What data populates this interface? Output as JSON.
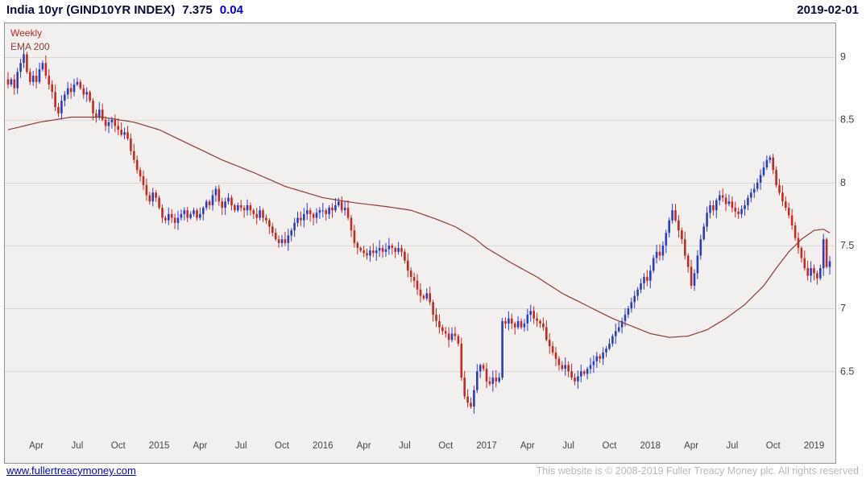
{
  "header": {
    "title": "India 10yr (GIND10YR INDEX)",
    "last_price": "7.375",
    "change": "0.04",
    "date": "2019-02-01"
  },
  "legend": {
    "timeframe": "Weekly",
    "overlay": "EMA 200"
  },
  "footer": {
    "link": "www.fullertreacymoney.com",
    "copyright": "This website is © 2008-2019 Fuller Treacy Money plc. All rights reserved"
  },
  "colors": {
    "title": "#0a0a3c",
    "change": "#0000dd",
    "link": "#0000cc",
    "copyright": "#b9b9b9",
    "legend_timeframe": "#b22822",
    "legend_ema": "#8c3a38",
    "up": "#2b3cc0",
    "down": "#c22a22",
    "ema": "#8c3a38",
    "grid": "#d8d8d6",
    "plot_bg": "#f1f0ee",
    "border": "#8f8f8f",
    "axis_text": "#444444"
  },
  "chart_data": {
    "type": "candlestick",
    "title": "India 10yr (GIND10YR INDEX)",
    "subtitle": "Weekly",
    "legend_entries": [
      "Weekly",
      "EMA 200"
    ],
    "last": 7.375,
    "change": 0.04,
    "as_of": "2019-02-01",
    "y_ticks": [
      9,
      8.5,
      8,
      7.5,
      7,
      6.5
    ],
    "y_tick_labels": [
      "9",
      "8.5",
      "8",
      "7.5",
      "7",
      "6.5"
    ],
    "y_range": [
      5.99,
      9.24
    ],
    "x_labels": [
      {
        "label": "Apr",
        "week": 9
      },
      {
        "label": "Jul",
        "week": 22
      },
      {
        "label": "Oct",
        "week": 35
      },
      {
        "label": "2015",
        "week": 48
      },
      {
        "label": "Apr",
        "week": 61
      },
      {
        "label": "Jul",
        "week": 74
      },
      {
        "label": "Oct",
        "week": 87
      },
      {
        "label": "2016",
        "week": 100
      },
      {
        "label": "Apr",
        "week": 113
      },
      {
        "label": "Jul",
        "week": 126
      },
      {
        "label": "Oct",
        "week": 139
      },
      {
        "label": "2017",
        "week": 152
      },
      {
        "label": "Apr",
        "week": 165
      },
      {
        "label": "Jul",
        "week": 178
      },
      {
        "label": "Oct",
        "week": 191
      },
      {
        "label": "2018",
        "week": 204
      },
      {
        "label": "Apr",
        "week": 217
      },
      {
        "label": "Jul",
        "week": 230
      },
      {
        "label": "Oct",
        "week": 243
      },
      {
        "label": "2019",
        "week": 256
      }
    ],
    "weekly_closes": [
      8.78,
      8.82,
      8.75,
      8.88,
      8.95,
      9.02,
      8.88,
      8.8,
      8.85,
      8.8,
      8.9,
      8.95,
      8.85,
      8.78,
      8.72,
      8.6,
      8.55,
      8.65,
      8.7,
      8.75,
      8.72,
      8.78,
      8.8,
      8.75,
      8.7,
      8.72,
      8.65,
      8.55,
      8.52,
      8.58,
      8.5,
      8.45,
      8.48,
      8.5,
      8.45,
      8.42,
      8.38,
      8.4,
      8.35,
      8.25,
      8.18,
      8.1,
      8.05,
      7.98,
      7.9,
      7.85,
      7.92,
      7.88,
      7.8,
      7.72,
      7.7,
      7.75,
      7.72,
      7.68,
      7.72,
      7.75,
      7.78,
      7.72,
      7.75,
      7.78,
      7.72,
      7.75,
      7.8,
      7.85,
      7.82,
      7.9,
      7.95,
      7.85,
      7.8,
      7.85,
      7.88,
      7.82,
      7.78,
      7.82,
      7.8,
      7.78,
      7.82,
      7.78,
      7.75,
      7.72,
      7.78,
      7.72,
      7.7,
      7.65,
      7.6,
      7.55,
      7.52,
      7.55,
      7.52,
      7.58,
      7.62,
      7.68,
      7.72,
      7.7,
      7.75,
      7.78,
      7.75,
      7.72,
      7.76,
      7.78,
      7.78,
      7.75,
      7.8,
      7.78,
      7.82,
      7.85,
      7.78,
      7.8,
      7.72,
      7.62,
      7.52,
      7.48,
      7.46,
      7.44,
      7.42,
      7.46,
      7.44,
      7.46,
      7.48,
      7.45,
      7.47,
      7.5,
      7.48,
      7.45,
      7.48,
      7.45,
      7.38,
      7.3,
      7.25,
      7.22,
      7.15,
      7.1,
      7.08,
      7.12,
      7.05,
      6.95,
      6.9,
      6.85,
      6.82,
      6.8,
      6.75,
      6.8,
      6.78,
      6.72,
      6.45,
      6.3,
      6.25,
      6.22,
      6.35,
      6.5,
      6.55,
      6.52,
      6.42,
      6.4,
      6.45,
      6.42,
      6.45,
      6.9,
      6.88,
      6.92,
      6.88,
      6.85,
      6.9,
      6.85,
      6.88,
      6.95,
      6.98,
      6.92,
      6.9,
      6.88,
      6.85,
      6.75,
      6.7,
      6.65,
      6.6,
      6.55,
      6.52,
      6.55,
      6.5,
      6.45,
      6.42,
      6.46,
      6.5,
      6.48,
      6.52,
      6.55,
      6.58,
      6.62,
      6.6,
      6.65,
      6.68,
      6.72,
      6.78,
      6.82,
      6.85,
      6.9,
      6.95,
      7.0,
      7.05,
      7.1,
      7.15,
      7.2,
      7.25,
      7.22,
      7.3,
      7.4,
      7.45,
      7.42,
      7.5,
      7.6,
      7.7,
      7.78,
      7.7,
      7.62,
      7.55,
      7.42,
      7.33,
      7.18,
      7.28,
      7.42,
      7.55,
      7.65,
      7.76,
      7.82,
      7.78,
      7.86,
      7.9,
      7.88,
      7.83,
      7.85,
      7.8,
      7.77,
      7.75,
      7.79,
      7.82,
      7.88,
      7.92,
      7.95,
      8.0,
      8.06,
      8.12,
      8.18,
      8.2,
      8.1,
      7.98,
      7.92,
      7.85,
      7.8,
      7.74,
      7.66,
      7.56,
      7.48,
      7.4,
      7.32,
      7.26,
      7.32,
      7.28,
      7.24,
      7.32,
      7.55,
      7.33,
      7.375
    ],
    "ema_200": [
      [
        0,
        8.42
      ],
      [
        10,
        8.48
      ],
      [
        20,
        8.52
      ],
      [
        30,
        8.52
      ],
      [
        40,
        8.48
      ],
      [
        48,
        8.42
      ],
      [
        58,
        8.3
      ],
      [
        68,
        8.18
      ],
      [
        78,
        8.08
      ],
      [
        88,
        7.97
      ],
      [
        100,
        7.88
      ],
      [
        110,
        7.84
      ],
      [
        120,
        7.81
      ],
      [
        128,
        7.78
      ],
      [
        136,
        7.71
      ],
      [
        142,
        7.65
      ],
      [
        148,
        7.56
      ],
      [
        152,
        7.48
      ],
      [
        160,
        7.36
      ],
      [
        168,
        7.25
      ],
      [
        176,
        7.12
      ],
      [
        184,
        7.02
      ],
      [
        192,
        6.92
      ],
      [
        200,
        6.84
      ],
      [
        204,
        6.8
      ],
      [
        210,
        6.77
      ],
      [
        216,
        6.78
      ],
      [
        222,
        6.83
      ],
      [
        228,
        6.92
      ],
      [
        234,
        7.03
      ],
      [
        240,
        7.18
      ],
      [
        244,
        7.32
      ],
      [
        248,
        7.45
      ],
      [
        252,
        7.55
      ],
      [
        256,
        7.62
      ],
      [
        259,
        7.63
      ],
      [
        261,
        7.6
      ]
    ]
  }
}
